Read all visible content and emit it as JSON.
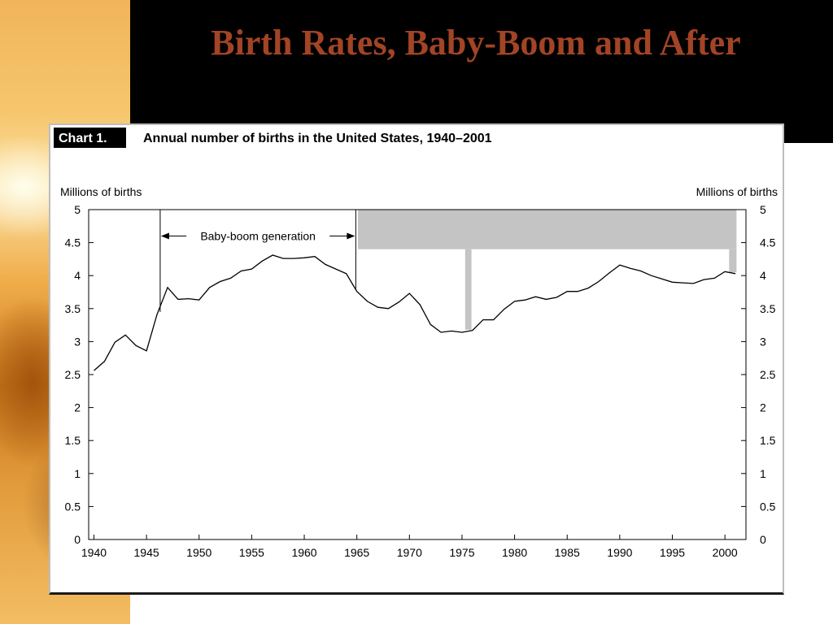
{
  "slide": {
    "title": "Birth Rates, Baby-Boom and After"
  },
  "chart_data": {
    "type": "line",
    "chart_label": "Chart 1.",
    "title": "Annual number of births in the United States, 1940–2001",
    "ylabel_left": "Millions of births",
    "ylabel_right": "Millions of births",
    "xlim": [
      1939.5,
      2002
    ],
    "ylim": [
      0,
      5
    ],
    "x_ticks": [
      1940,
      1945,
      1950,
      1955,
      1960,
      1965,
      1970,
      1975,
      1980,
      1985,
      1990,
      1995,
      2000
    ],
    "y_ticks": [
      0,
      0.5,
      1,
      1.5,
      2,
      2.5,
      3,
      3.5,
      4,
      4.5,
      5
    ],
    "y_tick_labels": [
      "0",
      "0.5",
      "1",
      "1.5",
      "2",
      "2.5",
      "3",
      "3.5",
      "4",
      "4.5",
      "5"
    ],
    "grid": false,
    "annotation": {
      "text": "Baby-boom generation",
      "x_start": 1946.3,
      "x_end": 1964.9,
      "y": 4.6
    },
    "shaded_regions": [
      {
        "x_start": 1965.1,
        "x_end": 2001.1,
        "y_start": 4.4,
        "y_end": 5
      },
      {
        "x_start": 1975.3,
        "x_end": 1975.9,
        "y_start": 3.18,
        "y_end": 4.4
      },
      {
        "x_start": 2000.4,
        "x_end": 2001.1,
        "y_start": 4.05,
        "y_end": 4.4
      }
    ],
    "series": [
      {
        "x": [
          1940,
          1941,
          1942,
          1943,
          1944,
          1945,
          1946,
          1947,
          1948,
          1949,
          1950,
          1951,
          1952,
          1953,
          1954,
          1955,
          1956,
          1957,
          1958,
          1959,
          1960,
          1961,
          1962,
          1963,
          1964,
          1965,
          1966,
          1967,
          1968,
          1969,
          1970,
          1971,
          1972,
          1973,
          1974,
          1975,
          1976,
          1977,
          1978,
          1979,
          1980,
          1981,
          1982,
          1983,
          1984,
          1985,
          1986,
          1987,
          1988,
          1989,
          1990,
          1991,
          1992,
          1993,
          1994,
          1995,
          1996,
          1997,
          1998,
          1999,
          2000,
          2001
        ],
        "values": [
          2.56,
          2.7,
          2.99,
          3.1,
          2.94,
          2.86,
          3.41,
          3.82,
          3.64,
          3.65,
          3.63,
          3.82,
          3.91,
          3.96,
          4.07,
          4.1,
          4.22,
          4.31,
          4.26,
          4.26,
          4.27,
          4.29,
          4.17,
          4.1,
          4.03,
          3.76,
          3.61,
          3.52,
          3.5,
          3.6,
          3.73,
          3.56,
          3.26,
          3.14,
          3.16,
          3.14,
          3.17,
          3.33,
          3.33,
          3.49,
          3.61,
          3.63,
          3.68,
          3.64,
          3.67,
          3.76,
          3.76,
          3.81,
          3.91,
          4.04,
          4.16,
          4.11,
          4.07,
          4.0,
          3.95,
          3.9,
          3.89,
          3.88,
          3.94,
          3.96,
          4.06,
          4.03
        ]
      }
    ]
  }
}
